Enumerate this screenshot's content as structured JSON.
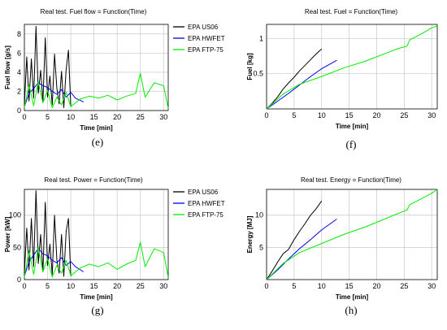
{
  "chart_data": [
    {
      "type": "line",
      "title": "Real test. Fuel flow = Function(Time)",
      "xlabel": "Time [min]",
      "ylabel": "Fuel flow [g/s]",
      "xlim": [
        0,
        31
      ],
      "ylim": [
        0,
        9
      ],
      "xticks": [
        0,
        5,
        10,
        15,
        20,
        25,
        30
      ],
      "yticks": [
        0,
        2,
        4,
        6,
        8
      ],
      "grid": true,
      "legend": "right",
      "caption": "(e)",
      "series": [
        {
          "name": "EPA US06",
          "color": "#000000",
          "x": [
            0,
            0.5,
            1,
            1.5,
            2,
            2.5,
            3,
            3.5,
            4,
            4.5,
            5,
            5.5,
            6,
            6.5,
            7,
            7.5,
            8,
            8.5,
            9,
            9.5,
            10
          ],
          "y": [
            0.6,
            5.6,
            1.0,
            5.4,
            1.3,
            8.8,
            1.8,
            4.2,
            0.9,
            7.6,
            1.4,
            3.6,
            0.6,
            5.9,
            2.3,
            0.7,
            4.1,
            0.3,
            4.3,
            6.3,
            0.4
          ]
        },
        {
          "name": "EPA HWFET",
          "color": "#0000ee",
          "x": [
            0,
            1,
            2,
            3,
            4,
            5,
            6,
            7,
            8,
            9,
            10,
            11,
            12.75
          ],
          "y": [
            0.4,
            1.8,
            2.3,
            2.9,
            2.6,
            2.4,
            2.0,
            1.7,
            2.2,
            1.4,
            1.9,
            1.3,
            0.9
          ]
        },
        {
          "name": "EPA FTP-75",
          "color": "#00ee00",
          "x": [
            0,
            1,
            2,
            3,
            4,
            5,
            6,
            7,
            8,
            9,
            10,
            12,
            14,
            16,
            18,
            20,
            22,
            24,
            25,
            26,
            28,
            30,
            31
          ],
          "y": [
            0.3,
            2.7,
            0.5,
            3.0,
            0.8,
            2.1,
            0.3,
            1.4,
            0.6,
            1.9,
            0.4,
            1.2,
            1.5,
            1.3,
            1.6,
            1.1,
            1.5,
            1.8,
            3.9,
            1.4,
            2.9,
            2.6,
            0.2
          ]
        }
      ]
    },
    {
      "type": "line",
      "title": "Real test. Fuel = Function(Time)",
      "xlabel": "Time [min]",
      "ylabel": "Fuel [kg]",
      "xlim": [
        0,
        31
      ],
      "ylim": [
        0,
        1.2
      ],
      "xticks": [
        0,
        5,
        10,
        15,
        20,
        25,
        30
      ],
      "yticks": [
        0.5,
        1
      ],
      "grid": true,
      "caption": "(f)",
      "series": [
        {
          "color": "#000000",
          "x": [
            0,
            1,
            2,
            3,
            4,
            5,
            6,
            7,
            8,
            9,
            10
          ],
          "y": [
            0,
            0.08,
            0.17,
            0.28,
            0.37,
            0.45,
            0.54,
            0.62,
            0.7,
            0.78,
            0.85
          ]
        },
        {
          "color": "#0000ee",
          "x": [
            0,
            2,
            4,
            6,
            8,
            10,
            12.75
          ],
          "y": [
            0,
            0.11,
            0.22,
            0.34,
            0.46,
            0.57,
            0.69
          ]
        },
        {
          "color": "#00ee00",
          "x": [
            0,
            3,
            6,
            10,
            14,
            18,
            22,
            24,
            25.5,
            26,
            28,
            30,
            31
          ],
          "y": [
            0,
            0.21,
            0.35,
            0.46,
            0.58,
            0.68,
            0.8,
            0.86,
            0.89,
            0.98,
            1.06,
            1.15,
            1.18
          ]
        }
      ]
    },
    {
      "type": "line",
      "title": "Real test. Power = Function(Time)",
      "xlabel": "Time [min]",
      "ylabel": "Power [kW]",
      "xlim": [
        0,
        31
      ],
      "ylim": [
        0,
        140
      ],
      "xticks": [
        0,
        5,
        10,
        15,
        20,
        25,
        30
      ],
      "yticks": [
        0,
        50,
        100
      ],
      "grid": true,
      "legend": "right",
      "caption": "(g)",
      "series": [
        {
          "name": "EPA US06",
          "color": "#000000",
          "x": [
            0,
            0.5,
            1,
            1.5,
            2,
            2.5,
            3,
            3.5,
            4,
            4.5,
            5,
            5.5,
            6,
            6.5,
            7,
            7.5,
            8,
            8.5,
            9,
            9.5,
            10
          ],
          "y": [
            10,
            80,
            15,
            95,
            20,
            138,
            25,
            70,
            12,
            120,
            22,
            55,
            8,
            100,
            30,
            10,
            70,
            5,
            75,
            95,
            5
          ]
        },
        {
          "name": "EPA HWFET",
          "color": "#0000ee",
          "x": [
            0,
            1,
            2,
            3,
            4,
            5,
            6,
            7,
            8,
            9,
            10,
            11,
            12.75
          ],
          "y": [
            5,
            28,
            38,
            48,
            40,
            37,
            30,
            26,
            34,
            22,
            28,
            20,
            12
          ]
        },
        {
          "name": "EPA FTP-75",
          "color": "#00ee00",
          "x": [
            0,
            1,
            2,
            3,
            4,
            5,
            6,
            7,
            8,
            9,
            10,
            12,
            14,
            16,
            18,
            20,
            22,
            24,
            25,
            26,
            28,
            30,
            31
          ],
          "y": [
            3,
            45,
            8,
            50,
            12,
            32,
            4,
            22,
            10,
            30,
            6,
            18,
            24,
            20,
            26,
            16,
            24,
            30,
            58,
            20,
            48,
            42,
            3
          ]
        }
      ]
    },
    {
      "type": "line",
      "title": "Real test. Energy = Function(Time)",
      "xlabel": "Time [min]",
      "ylabel": "Energy [MJ]",
      "xlim": [
        0,
        31
      ],
      "ylim": [
        0,
        14
      ],
      "xticks": [
        0,
        5,
        10,
        15,
        20,
        25,
        30
      ],
      "yticks": [
        5,
        10
      ],
      "grid": true,
      "caption": "(h)",
      "series": [
        {
          "color": "#000000",
          "x": [
            0,
            1,
            2,
            3,
            4,
            5,
            6,
            7,
            8,
            9,
            10
          ],
          "y": [
            0,
            1.3,
            2.7,
            4.0,
            4.7,
            6.2,
            7.5,
            8.7,
            10.0,
            11.0,
            12.2
          ]
        },
        {
          "color": "#0000ee",
          "x": [
            0,
            2,
            4,
            6,
            8,
            10,
            12.75
          ],
          "y": [
            0,
            1.5,
            3.2,
            4.8,
            6.2,
            7.7,
            9.4
          ]
        },
        {
          "color": "#00ee00",
          "x": [
            0,
            3,
            6,
            10,
            14,
            18,
            22,
            24,
            25.5,
            26,
            28,
            30,
            31
          ],
          "y": [
            0,
            2.5,
            4.2,
            5.6,
            7.0,
            8.2,
            9.6,
            10.3,
            10.8,
            11.6,
            12.5,
            13.4,
            14.0
          ]
        }
      ]
    }
  ]
}
